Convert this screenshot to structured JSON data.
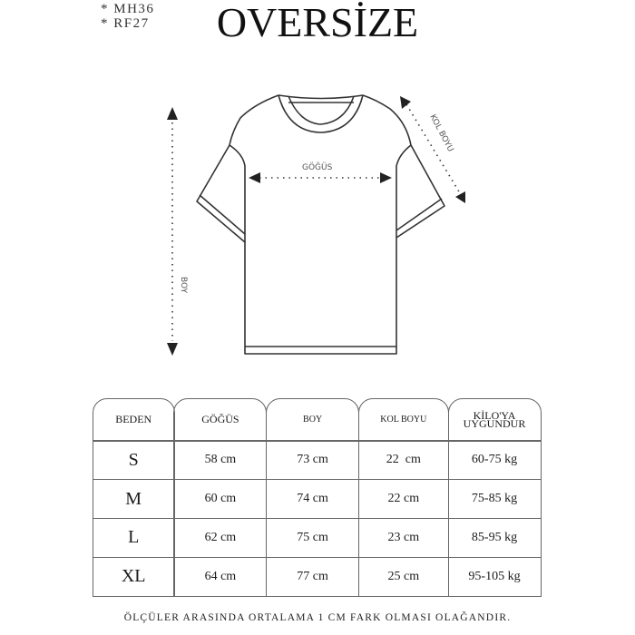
{
  "codes": [
    "* MH36",
    "* RF27"
  ],
  "title": "OVERSİZE",
  "diagram": {
    "chest_label": "GÖĞÜS",
    "length_label": "BOY",
    "sleeve_label": "KOL BOYU"
  },
  "table": {
    "headers": [
      "BEDEN",
      "GÖĞÜS",
      "BOY",
      "KOL BOYU",
      "KİLO'YA",
      "UYGUNDUR"
    ],
    "rows": [
      {
        "size": "S",
        "chest": "58 cm",
        "length": "73 cm",
        "sleeve": "22  cm",
        "weight": "60-75 kg"
      },
      {
        "size": "M",
        "chest": "60 cm",
        "length": "74 cm",
        "sleeve": "22 cm",
        "weight": "75-85 kg"
      },
      {
        "size": "L",
        "chest": "62 cm",
        "length": "75 cm",
        "sleeve": "23 cm",
        "weight": "85-95 kg"
      },
      {
        "size": "XL",
        "chest": "64 cm",
        "length": "77 cm",
        "sleeve": "25 cm",
        "weight": "95-105 kg"
      }
    ]
  },
  "footer": "ÖLÇÜLER ARASINDA ORTALAMA 1 CM FARK OLMASI OLAĞANDIR."
}
